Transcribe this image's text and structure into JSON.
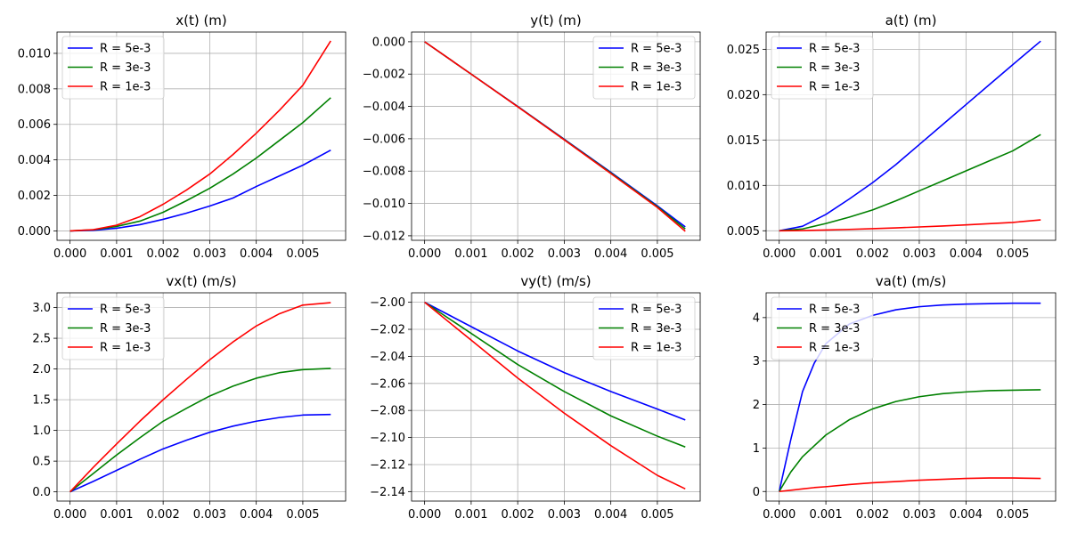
{
  "figure": {
    "rows": 2,
    "cols": 3
  },
  "chart_data": [
    {
      "type": "line",
      "title": "x(t) (m)",
      "xlabel": "",
      "ylabel": "",
      "xlim": [
        -0.00028,
        0.00592
      ],
      "ylim": [
        -0.00053,
        0.0112
      ],
      "xticks": [
        "0.000",
        "0.001",
        "0.002",
        "0.003",
        "0.004",
        "0.005"
      ],
      "xtick_values": [
        0,
        0.001,
        0.002,
        0.003,
        0.004,
        0.005
      ],
      "yticks": [
        "0.000",
        "0.002",
        "0.004",
        "0.006",
        "0.008",
        "0.010"
      ],
      "ytick_values": [
        0,
        0.002,
        0.004,
        0.006,
        0.008,
        0.01
      ],
      "grid": true,
      "legend": "top-left",
      "x": [
        0,
        0.0005,
        0.001,
        0.0015,
        0.002,
        0.0025,
        0.003,
        0.0035,
        0.004,
        0.0045,
        0.005,
        0.0056
      ],
      "series": [
        {
          "name": "R = 5e-3",
          "color": "#0000ff",
          "values": [
            0,
            3e-05,
            0.00015,
            0.00035,
            0.00065,
            0.001,
            0.0014,
            0.00185,
            0.0025,
            0.0031,
            0.0037,
            0.00455
          ]
        },
        {
          "name": "R = 3e-3",
          "color": "#008000",
          "values": [
            0,
            6e-05,
            0.00025,
            0.00055,
            0.00105,
            0.0017,
            0.0024,
            0.0032,
            0.0041,
            0.0051,
            0.0061,
            0.0075
          ]
        },
        {
          "name": "R = 1e-3",
          "color": "#ff0000",
          "values": [
            0,
            7e-05,
            0.00032,
            0.0008,
            0.0015,
            0.0023,
            0.0032,
            0.0043,
            0.0055,
            0.0068,
            0.0082,
            0.0107
          ]
        }
      ]
    },
    {
      "type": "line",
      "title": "y(t) (m)",
      "xlabel": "",
      "ylabel": "",
      "xlim": [
        -0.00028,
        0.00592
      ],
      "ylim": [
        -0.01228,
        0.0006
      ],
      "xticks": [
        "0.000",
        "0.001",
        "0.002",
        "0.003",
        "0.004",
        "0.005"
      ],
      "xtick_values": [
        0,
        0.001,
        0.002,
        0.003,
        0.004,
        0.005
      ],
      "yticks": [
        "0.000",
        "−0.002",
        "−0.004",
        "−0.006",
        "−0.008",
        "−0.010",
        "−0.012"
      ],
      "ytick_values": [
        0,
        -0.002,
        -0.004,
        -0.006,
        -0.008,
        -0.01,
        -0.012
      ],
      "grid": true,
      "legend": "top-right",
      "x": [
        0,
        0.001,
        0.002,
        0.003,
        0.004,
        0.005,
        0.0056
      ],
      "series": [
        {
          "name": "R = 5e-3",
          "color": "#0000ff",
          "values": [
            0,
            -0.002,
            -0.004,
            -0.00603,
            -0.00807,
            -0.01015,
            -0.01145
          ]
        },
        {
          "name": "R = 3e-3",
          "color": "#008000",
          "values": [
            0,
            -0.002,
            -0.00401,
            -0.00605,
            -0.00811,
            -0.0102,
            -0.01158
          ]
        },
        {
          "name": "R = 1e-3",
          "color": "#ff0000",
          "values": [
            0,
            -0.002,
            -0.00402,
            -0.00607,
            -0.00815,
            -0.01025,
            -0.01172
          ]
        }
      ]
    },
    {
      "type": "line",
      "title": "a(t) (m)",
      "xlabel": "",
      "ylabel": "",
      "xlim": [
        -0.00028,
        0.00592
      ],
      "ylim": [
        0.00395,
        0.0269
      ],
      "xticks": [
        "0.000",
        "0.001",
        "0.002",
        "0.003",
        "0.004",
        "0.005"
      ],
      "xtick_values": [
        0,
        0.001,
        0.002,
        0.003,
        0.004,
        0.005
      ],
      "yticks": [
        "0.005",
        "0.010",
        "0.015",
        "0.020",
        "0.025"
      ],
      "ytick_values": [
        0.005,
        0.01,
        0.015,
        0.02,
        0.025
      ],
      "grid": true,
      "legend": "top-left",
      "x": [
        0,
        0.0005,
        0.001,
        0.0015,
        0.002,
        0.0025,
        0.003,
        0.0035,
        0.004,
        0.0045,
        0.005,
        0.0056
      ],
      "series": [
        {
          "name": "R = 5e-3",
          "color": "#0000ff",
          "values": [
            0.005,
            0.0055,
            0.0068,
            0.0085,
            0.0103,
            0.0123,
            0.0145,
            0.0167,
            0.0189,
            0.0211,
            0.0233,
            0.0259
          ]
        },
        {
          "name": "R = 3e-3",
          "color": "#008000",
          "values": [
            0.005,
            0.0052,
            0.0058,
            0.0065,
            0.0073,
            0.0083,
            0.0094,
            0.0105,
            0.0116,
            0.0127,
            0.0138,
            0.0156
          ]
        },
        {
          "name": "R = 1e-3",
          "color": "#ff0000",
          "values": [
            0.005,
            0.00502,
            0.00508,
            0.00515,
            0.00523,
            0.00532,
            0.00542,
            0.00553,
            0.00565,
            0.00578,
            0.00592,
            0.0062
          ]
        }
      ]
    },
    {
      "type": "line",
      "title": "vx(t) (m/s)",
      "xlabel": "",
      "ylabel": "",
      "xlim": [
        -0.00028,
        0.00592
      ],
      "ylim": [
        -0.15,
        3.24
      ],
      "xticks": [
        "0.000",
        "0.001",
        "0.002",
        "0.003",
        "0.004",
        "0.005"
      ],
      "xtick_values": [
        0,
        0.001,
        0.002,
        0.003,
        0.004,
        0.005
      ],
      "yticks": [
        "0.0",
        "0.5",
        "1.0",
        "1.5",
        "2.0",
        "2.5",
        "3.0"
      ],
      "ytick_values": [
        0,
        0.5,
        1.0,
        1.5,
        2.0,
        2.5,
        3.0
      ],
      "grid": true,
      "legend": "top-left",
      "x": [
        0,
        0.0005,
        0.001,
        0.0015,
        0.002,
        0.0025,
        0.003,
        0.0035,
        0.004,
        0.0045,
        0.005,
        0.0056
      ],
      "series": [
        {
          "name": "R = 5e-3",
          "color": "#0000ff",
          "values": [
            0,
            0.17,
            0.35,
            0.53,
            0.7,
            0.84,
            0.97,
            1.07,
            1.15,
            1.21,
            1.25,
            1.26
          ]
        },
        {
          "name": "R = 3e-3",
          "color": "#008000",
          "values": [
            0,
            0.3,
            0.6,
            0.88,
            1.15,
            1.36,
            1.56,
            1.72,
            1.85,
            1.94,
            1.99,
            2.01
          ]
        },
        {
          "name": "R = 1e-3",
          "color": "#ff0000",
          "values": [
            0,
            0.4,
            0.78,
            1.15,
            1.5,
            1.83,
            2.15,
            2.44,
            2.7,
            2.9,
            3.04,
            3.08
          ]
        }
      ]
    },
    {
      "type": "line",
      "title": "vy(t) (m/s)",
      "xlabel": "",
      "ylabel": "",
      "xlim": [
        -0.00028,
        0.00592
      ],
      "ylim": [
        -2.147,
        -1.993
      ],
      "xticks": [
        "0.000",
        "0.001",
        "0.002",
        "0.003",
        "0.004",
        "0.005"
      ],
      "xtick_values": [
        0,
        0.001,
        0.002,
        0.003,
        0.004,
        0.005
      ],
      "yticks": [
        "−2.00",
        "−2.02",
        "−2.04",
        "−2.06",
        "−2.08",
        "−2.10",
        "−2.12",
        "−2.14"
      ],
      "ytick_values": [
        -2.0,
        -2.02,
        -2.04,
        -2.06,
        -2.08,
        -2.1,
        -2.12,
        -2.14
      ],
      "grid": true,
      "legend": "top-right",
      "x": [
        0,
        0.001,
        0.002,
        0.003,
        0.004,
        0.005,
        0.0056
      ],
      "series": [
        {
          "name": "R = 5e-3",
          "color": "#0000ff",
          "values": [
            -2.0,
            -2.018,
            -2.036,
            -2.052,
            -2.066,
            -2.079,
            -2.087
          ]
        },
        {
          "name": "R = 3e-3",
          "color": "#008000",
          "values": [
            -2.0,
            -2.023,
            -2.046,
            -2.066,
            -2.084,
            -2.099,
            -2.107
          ]
        },
        {
          "name": "R = 1e-3",
          "color": "#ff0000",
          "values": [
            -2.0,
            -2.028,
            -2.056,
            -2.082,
            -2.106,
            -2.128,
            -2.138
          ]
        }
      ]
    },
    {
      "type": "line",
      "title": "va(t) (m/s)",
      "xlabel": "",
      "ylabel": "",
      "xlim": [
        -0.00028,
        0.00592
      ],
      "ylim": [
        -0.22,
        4.57
      ],
      "xticks": [
        "0.000",
        "0.001",
        "0.002",
        "0.003",
        "0.004",
        "0.005"
      ],
      "xtick_values": [
        0,
        0.001,
        0.002,
        0.003,
        0.004,
        0.005
      ],
      "yticks": [
        "0",
        "1",
        "2",
        "3",
        "4"
      ],
      "ytick_values": [
        0,
        1,
        2,
        3,
        4
      ],
      "grid": true,
      "legend": "top-left",
      "x": [
        0,
        0.00025,
        0.0005,
        0.00075,
        0.001,
        0.0015,
        0.002,
        0.0025,
        0.003,
        0.0035,
        0.004,
        0.0045,
        0.005,
        0.0056
      ],
      "series": [
        {
          "name": "R = 5e-3",
          "color": "#0000ff",
          "values": [
            0,
            1.2,
            2.3,
            2.95,
            3.4,
            3.85,
            4.05,
            4.18,
            4.25,
            4.29,
            4.31,
            4.32,
            4.33,
            4.33
          ]
        },
        {
          "name": "R = 3e-3",
          "color": "#008000",
          "values": [
            0,
            0.45,
            0.8,
            1.05,
            1.3,
            1.65,
            1.9,
            2.07,
            2.18,
            2.25,
            2.29,
            2.32,
            2.33,
            2.34
          ]
        },
        {
          "name": "R = 1e-3",
          "color": "#ff0000",
          "values": [
            0,
            0.03,
            0.06,
            0.09,
            0.11,
            0.16,
            0.2,
            0.23,
            0.26,
            0.28,
            0.3,
            0.31,
            0.31,
            0.3
          ]
        }
      ]
    }
  ]
}
